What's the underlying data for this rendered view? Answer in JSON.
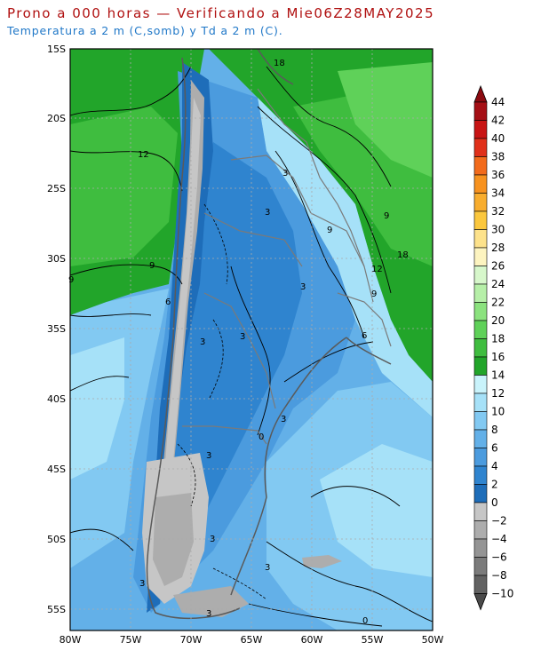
{
  "header": {
    "title": "Prono a 000 horas — Verificando a Mie06Z28MAY2025",
    "subtitle": "Temperatura a 2 m (C,somb) y Td a 2 m (C)."
  },
  "map": {
    "lat_labels": [
      "15S",
      "20S",
      "25S",
      "30S",
      "35S",
      "40S",
      "45S",
      "50S",
      "55S"
    ],
    "lon_labels": [
      "80W",
      "75W",
      "70W",
      "65W",
      "60W",
      "55W",
      "50W"
    ],
    "contour_labels": [
      {
        "text": "18"
      },
      {
        "text": "12"
      },
      {
        "text": "9"
      },
      {
        "text": "9"
      },
      {
        "text": "9"
      },
      {
        "text": "3"
      },
      {
        "text": "3"
      },
      {
        "text": "3"
      },
      {
        "text": "3"
      },
      {
        "text": "6"
      },
      {
        "text": "12"
      },
      {
        "text": "18"
      },
      {
        "text": "9"
      },
      {
        "text": "6"
      },
      {
        "text": "3"
      },
      {
        "text": "0"
      },
      {
        "text": "3"
      },
      {
        "text": "3"
      },
      {
        "text": "3"
      },
      {
        "text": "3"
      },
      {
        "text": "0"
      },
      {
        "text": "3"
      },
      {
        "text": "9"
      },
      {
        "text": "3"
      }
    ]
  },
  "colorbar": {
    "levels": [
      "44",
      "42",
      "40",
      "38",
      "36",
      "34",
      "32",
      "30",
      "28",
      "26",
      "24",
      "22",
      "20",
      "18",
      "16",
      "14",
      "12",
      "10",
      "8",
      "6",
      "4",
      "2",
      "0",
      "−2",
      "−4",
      "−6",
      "−8",
      "−10"
    ],
    "colors": [
      "#a50f15",
      "#c81414",
      "#e0301a",
      "#f26b1c",
      "#f7921f",
      "#f8ad2e",
      "#fbc73d",
      "#fde28b",
      "#fdf4c0",
      "#d7f7cb",
      "#b6efa8",
      "#8be27e",
      "#5fd159",
      "#3fbd3f",
      "#22a52a",
      "#c9f3fb",
      "#a6e1f8",
      "#82c9f2",
      "#63b0e8",
      "#4b9bde",
      "#2f84cf",
      "#1e6db9",
      "#c6c6c6",
      "#adadad",
      "#949494",
      "#7b7b7b",
      "#626262"
    ]
  }
}
